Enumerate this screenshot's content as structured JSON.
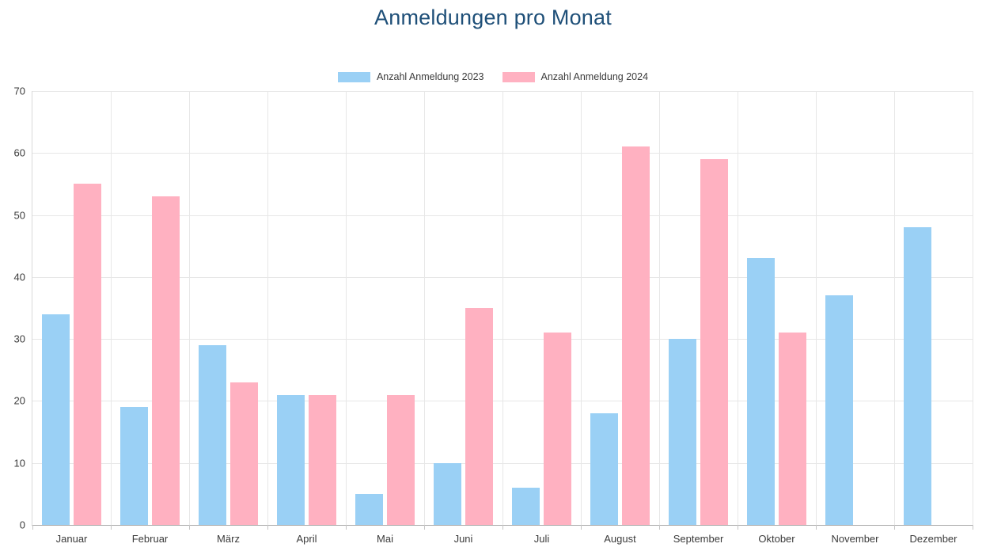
{
  "chart_data": {
    "type": "bar",
    "title": "Anmeldungen pro Monat",
    "title_color": "#1E4F78",
    "categories": [
      "Januar",
      "Februar",
      "März",
      "April",
      "Mai",
      "Juni",
      "Juli",
      "August",
      "September",
      "Oktober",
      "November",
      "Dezember"
    ],
    "series": [
      {
        "name": "Anzahl Anmeldung 2023",
        "color": "#9AD0F5",
        "values": [
          34,
          19,
          29,
          21,
          5,
          10,
          6,
          18,
          30,
          43,
          37,
          48
        ]
      },
      {
        "name": "Anzahl Anmeldung 2024",
        "color": "#FFB1C1",
        "values": [
          55,
          53,
          23,
          21,
          21,
          35,
          31,
          61,
          59,
          31,
          0,
          0
        ]
      }
    ],
    "xlabel": "",
    "ylabel": "",
    "ylim": [
      0,
      70
    ],
    "yticks": [
      0,
      10,
      20,
      30,
      40,
      50,
      60,
      70
    ],
    "grid": true,
    "legend_position": "top"
  }
}
